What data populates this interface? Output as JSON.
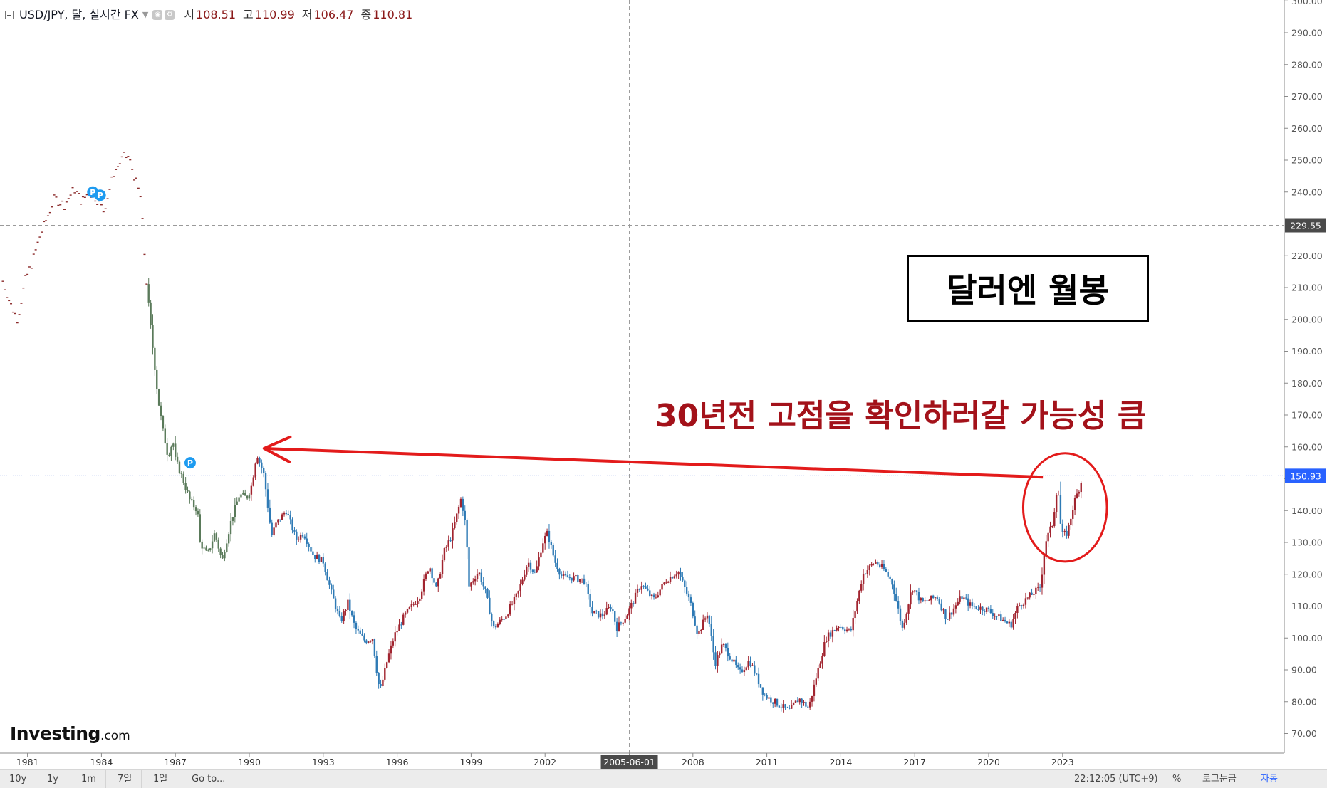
{
  "legend": {
    "symbol": "USD/JPY, 달, 실시간 FX",
    "open_label": "시",
    "open": "108.51",
    "high_label": "고",
    "high": "110.99",
    "low_label": "저",
    "low": "106.47",
    "close_label": "종",
    "close": "110.81"
  },
  "overlay": {
    "title": "달러엔 월봉",
    "annotation": "30년전 고점을 확인하러갈 가능성 큼",
    "logo_main": "Investing",
    "logo_suffix": ".com",
    "marker": "P"
  },
  "toolbar": {
    "ranges": [
      "10y",
      "1y",
      "1m",
      "7일",
      "1일"
    ],
    "goto": "Go to...",
    "time": "22:12:05 (UTC+9)",
    "percent": "%",
    "log": "로그눈금",
    "auto": "자동"
  },
  "colors": {
    "up": "#a1242f",
    "down": "#2e7ab5",
    "early": "#5a7a5a",
    "arrow": "#e31b1b",
    "price_line": "#4a6fd6",
    "crosshair": "#9a9a9a"
  },
  "chart_data": {
    "type": "candlestick",
    "interval": "monthly",
    "ylim": [
      70,
      300
    ],
    "yticks": [
      70,
      80,
      90,
      100,
      110,
      120,
      130,
      140,
      150,
      160,
      170,
      180,
      190,
      200,
      210,
      220,
      230,
      240,
      250,
      260,
      270,
      280,
      290,
      300
    ],
    "ytick_labels": [
      "70.00",
      "80.00",
      "90.00",
      "100.00",
      "110.00",
      "120.00",
      "130.00",
      "140.00",
      "150.00",
      "160.00",
      "170.00",
      "180.00",
      "190.00",
      "200.00",
      "210.00",
      "220.00",
      "230.00",
      "240.00",
      "250.00",
      "260.00",
      "270.00",
      "280.00",
      "290.00",
      "300.00"
    ],
    "xticks": [
      "1981",
      "1984",
      "1987",
      "1990",
      "1993",
      "1996",
      "1999",
      "2002",
      "2005-06-01",
      "2008",
      "2011",
      "2014",
      "2017",
      "2020",
      "2023"
    ],
    "current_price": "150.93",
    "crosshair_price": "229.55",
    "crosshair_date": "2005-06-01",
    "anchors": [
      [
        1980.0,
        212
      ],
      [
        1980.3,
        205
      ],
      [
        1980.6,
        200
      ],
      [
        1980.9,
        212
      ],
      [
        1981.2,
        218
      ],
      [
        1981.5,
        226
      ],
      [
        1981.8,
        232
      ],
      [
        1982.1,
        238
      ],
      [
        1982.5,
        236
      ],
      [
        1982.9,
        241
      ],
      [
        1983.2,
        237
      ],
      [
        1983.5,
        240
      ],
      [
        1983.8,
        238
      ],
      [
        1984.1,
        234
      ],
      [
        1984.5,
        246
      ],
      [
        1984.9,
        251
      ],
      [
        1985.1,
        251
      ],
      [
        1985.3,
        246
      ],
      [
        1985.6,
        238
      ],
      [
        1985.8,
        215
      ],
      [
        1985.95,
        201
      ],
      [
        1986.1,
        190
      ],
      [
        1986.3,
        175
      ],
      [
        1986.5,
        165
      ],
      [
        1986.7,
        157
      ],
      [
        1986.9,
        162
      ],
      [
        1987.0,
        156
      ],
      [
        1987.3,
        150
      ],
      [
        1987.6,
        143
      ],
      [
        1987.9,
        140
      ],
      [
        1988.0,
        130
      ],
      [
        1988.3,
        126
      ],
      [
        1988.6,
        133
      ],
      [
        1988.9,
        124
      ],
      [
        1989.0,
        128
      ],
      [
        1989.3,
        138
      ],
      [
        1989.6,
        145
      ],
      [
        1989.9,
        144
      ],
      [
        1990.1,
        148
      ],
      [
        1990.3,
        158
      ],
      [
        1990.6,
        151
      ],
      [
        1990.9,
        132
      ],
      [
        1991.1,
        136
      ],
      [
        1991.5,
        140
      ],
      [
        1991.9,
        131
      ],
      [
        1992.2,
        133
      ],
      [
        1992.6,
        126
      ],
      [
        1993.0,
        124
      ],
      [
        1993.3,
        115
      ],
      [
        1993.7,
        105
      ],
      [
        1994.0,
        111
      ],
      [
        1994.3,
        103
      ],
      [
        1994.7,
        99
      ],
      [
        1995.0,
        100
      ],
      [
        1995.2,
        88
      ],
      [
        1995.3,
        83
      ],
      [
        1995.6,
        93
      ],
      [
        1995.9,
        101
      ],
      [
        1996.3,
        107
      ],
      [
        1996.9,
        113
      ],
      [
        1997.3,
        123
      ],
      [
        1997.6,
        115
      ],
      [
        1997.9,
        127
      ],
      [
        1998.2,
        132
      ],
      [
        1998.6,
        144
      ],
      [
        1998.8,
        134
      ],
      [
        1998.9,
        116
      ],
      [
        1999.3,
        121
      ],
      [
        1999.6,
        114
      ],
      [
        1999.9,
        103
      ],
      [
        2000.4,
        107
      ],
      [
        2000.9,
        114
      ],
      [
        2001.3,
        124
      ],
      [
        2001.6,
        120
      ],
      [
        2001.9,
        130
      ],
      [
        2002.1,
        133
      ],
      [
        2002.4,
        124
      ],
      [
        2002.7,
        119
      ],
      [
        2003.1,
        119
      ],
      [
        2003.6,
        118
      ],
      [
        2003.9,
        108
      ],
      [
        2004.3,
        107
      ],
      [
        2004.7,
        110
      ],
      [
        2004.9,
        103
      ],
      [
        2005.3,
        107
      ],
      [
        2005.9,
        117
      ],
      [
        2006.4,
        112
      ],
      [
        2006.9,
        118
      ],
      [
        2007.4,
        121
      ],
      [
        2007.9,
        111
      ],
      [
        2008.2,
        101
      ],
      [
        2008.6,
        108
      ],
      [
        2008.9,
        92
      ],
      [
        2009.2,
        98
      ],
      [
        2009.6,
        93
      ],
      [
        2009.9,
        89
      ],
      [
        2010.3,
        93
      ],
      [
        2010.9,
        82
      ],
      [
        2011.3,
        80
      ],
      [
        2011.9,
        77
      ],
      [
        2012.3,
        81
      ],
      [
        2012.7,
        78
      ],
      [
        2012.95,
        86
      ],
      [
        2013.4,
        100
      ],
      [
        2013.9,
        104
      ],
      [
        2014.4,
        102
      ],
      [
        2014.9,
        120
      ],
      [
        2015.4,
        124
      ],
      [
        2015.8,
        121
      ],
      [
        2016.1,
        117
      ],
      [
        2016.5,
        103
      ],
      [
        2016.9,
        116
      ],
      [
        2017.3,
        111
      ],
      [
        2017.9,
        113
      ],
      [
        2018.3,
        106
      ],
      [
        2018.9,
        113
      ],
      [
        2019.3,
        110
      ],
      [
        2019.9,
        109
      ],
      [
        2020.3,
        107
      ],
      [
        2020.9,
        104
      ],
      [
        2021.2,
        110
      ],
      [
        2021.8,
        114
      ],
      [
        2022.1,
        116
      ],
      [
        2022.3,
        130
      ],
      [
        2022.6,
        136
      ],
      [
        2022.8,
        149
      ],
      [
        2022.95,
        132
      ],
      [
        2023.2,
        133
      ],
      [
        2023.45,
        142
      ],
      [
        2023.8,
        150
      ]
    ],
    "markers": [
      {
        "x": 1983.65,
        "y": 240,
        "label": "P"
      },
      {
        "x": 1983.95,
        "y": 239,
        "label": "P"
      },
      {
        "x": 1987.6,
        "y": 155,
        "label": "P"
      }
    ],
    "arrow": {
      "from": [
        2022.2,
        150.5
      ],
      "to": [
        1990.6,
        159.5
      ]
    },
    "ellipse": {
      "center": [
        2023.1,
        141
      ],
      "rx_years": 1.7,
      "ry_value": 17
    }
  }
}
